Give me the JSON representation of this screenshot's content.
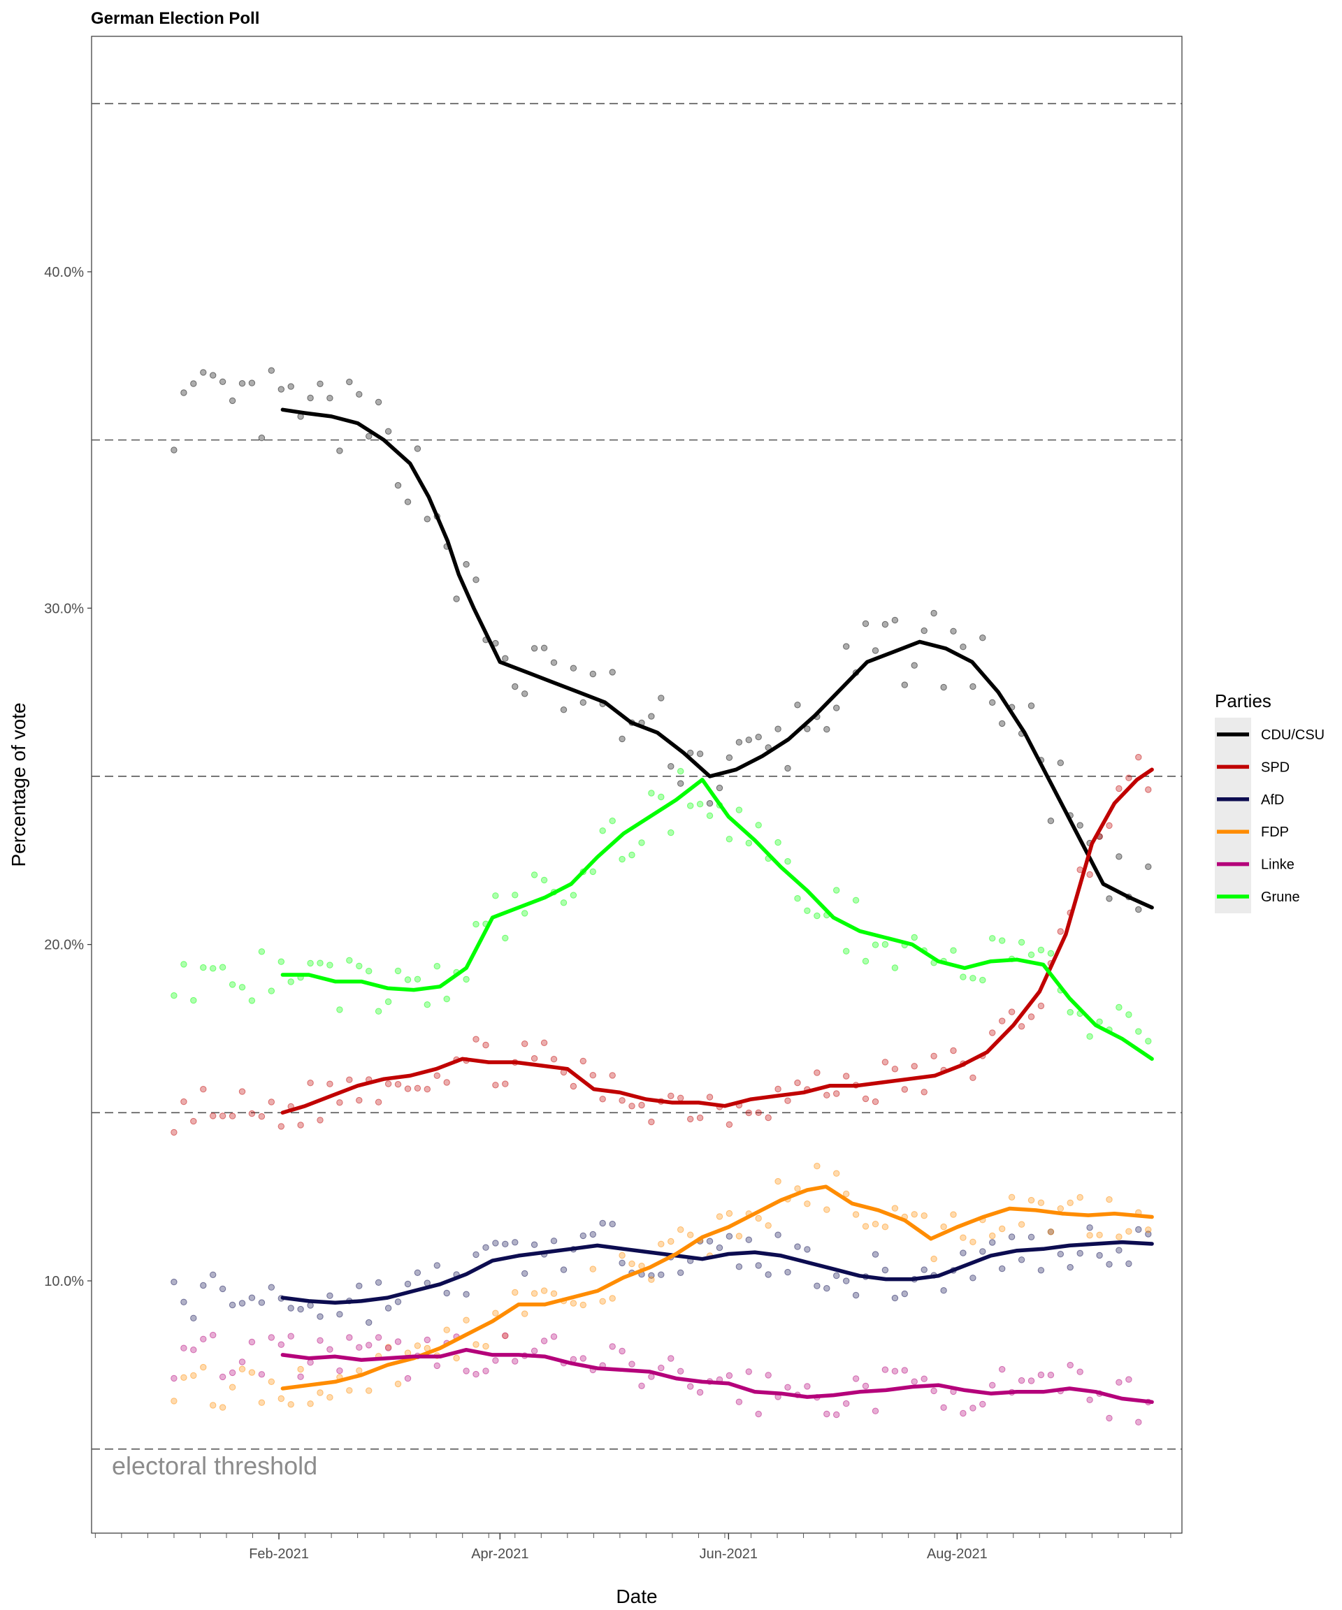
{
  "chart_data": {
    "type": "line",
    "title": "German Election Poll",
    "xlabel": "Date",
    "ylabel": "Percentage of vote",
    "x_tick_labels": [
      "Feb-2021",
      "Apr-2021",
      "Jun-2021",
      "Aug-2021"
    ],
    "y_tick_labels": [
      "10.0%",
      "20.0%",
      "30.0%",
      "40.0%"
    ],
    "y_ticks": [
      10,
      20,
      30,
      40
    ],
    "x_ticks": [
      "2021-02-01",
      "2021-04-01",
      "2021-06-01",
      "2021-08-01"
    ],
    "xlim": [
      "2020-12-13",
      "2021-09-30"
    ],
    "ylim": [
      2.5,
      47
    ],
    "reference_lines": [
      5,
      15,
      25,
      35,
      45
    ],
    "annotation": "electoral threshold",
    "legend_title": "Parties",
    "legend_position": "right",
    "grid": false,
    "series": [
      {
        "name": "CDU/CSU",
        "color": "#000000",
        "points": [
          [
            "2021-02-02",
            35.9
          ],
          [
            "2021-02-08",
            35.8
          ],
          [
            "2021-02-15",
            35.7
          ],
          [
            "2021-02-22",
            35.5
          ],
          [
            "2021-03-01",
            35.0
          ],
          [
            "2021-03-08",
            34.3
          ],
          [
            "2021-03-13",
            33.3
          ],
          [
            "2021-03-18",
            32.0
          ],
          [
            "2021-03-21",
            31.0
          ],
          [
            "2021-03-25",
            30.0
          ],
          [
            "2021-04-01",
            28.4
          ],
          [
            "2021-04-08",
            28.1
          ],
          [
            "2021-04-15",
            27.8
          ],
          [
            "2021-04-22",
            27.5
          ],
          [
            "2021-04-29",
            27.2
          ],
          [
            "2021-05-06",
            26.6
          ],
          [
            "2021-05-13",
            26.3
          ],
          [
            "2021-05-20",
            25.7
          ],
          [
            "2021-05-27",
            25.0
          ],
          [
            "2021-06-03",
            25.2
          ],
          [
            "2021-06-10",
            25.6
          ],
          [
            "2021-06-17",
            26.1
          ],
          [
            "2021-06-24",
            26.8
          ],
          [
            "2021-07-01",
            27.6
          ],
          [
            "2021-07-08",
            28.4
          ],
          [
            "2021-07-15",
            28.7
          ],
          [
            "2021-07-22",
            29.0
          ],
          [
            "2021-07-29",
            28.8
          ],
          [
            "2021-08-05",
            28.4
          ],
          [
            "2021-08-12",
            27.5
          ],
          [
            "2021-08-19",
            26.3
          ],
          [
            "2021-08-26",
            24.8
          ],
          [
            "2021-09-02",
            23.3
          ],
          [
            "2021-09-09",
            21.8
          ],
          [
            "2021-09-16",
            21.4
          ],
          [
            "2021-09-22",
            21.1
          ]
        ]
      },
      {
        "name": "SPD",
        "color": "#c00000",
        "points": [
          [
            "2021-02-02",
            15.0
          ],
          [
            "2021-02-08",
            15.2
          ],
          [
            "2021-02-15",
            15.5
          ],
          [
            "2021-02-22",
            15.8
          ],
          [
            "2021-03-01",
            16.0
          ],
          [
            "2021-03-08",
            16.1
          ],
          [
            "2021-03-15",
            16.3
          ],
          [
            "2021-03-22",
            16.6
          ],
          [
            "2021-03-29",
            16.5
          ],
          [
            "2021-04-05",
            16.5
          ],
          [
            "2021-04-12",
            16.4
          ],
          [
            "2021-04-19",
            16.3
          ],
          [
            "2021-04-26",
            15.7
          ],
          [
            "2021-05-03",
            15.6
          ],
          [
            "2021-05-10",
            15.4
          ],
          [
            "2021-05-17",
            15.3
          ],
          [
            "2021-05-24",
            15.3
          ],
          [
            "2021-05-31",
            15.2
          ],
          [
            "2021-06-07",
            15.4
          ],
          [
            "2021-06-14",
            15.5
          ],
          [
            "2021-06-21",
            15.6
          ],
          [
            "2021-06-28",
            15.8
          ],
          [
            "2021-07-05",
            15.8
          ],
          [
            "2021-07-12",
            15.9
          ],
          [
            "2021-07-19",
            16.0
          ],
          [
            "2021-07-26",
            16.1
          ],
          [
            "2021-08-02",
            16.4
          ],
          [
            "2021-08-09",
            16.8
          ],
          [
            "2021-08-16",
            17.6
          ],
          [
            "2021-08-23",
            18.6
          ],
          [
            "2021-08-30",
            20.3
          ],
          [
            "2021-09-06",
            23.0
          ],
          [
            "2021-09-12",
            24.2
          ],
          [
            "2021-09-18",
            24.9
          ],
          [
            "2021-09-22",
            25.2
          ]
        ]
      },
      {
        "name": "AfD",
        "color": "#0c0c50",
        "points": [
          [
            "2021-02-02",
            9.5
          ],
          [
            "2021-02-09",
            9.4
          ],
          [
            "2021-02-16",
            9.35
          ],
          [
            "2021-02-23",
            9.4
          ],
          [
            "2021-03-02",
            9.5
          ],
          [
            "2021-03-09",
            9.7
          ],
          [
            "2021-03-16",
            9.9
          ],
          [
            "2021-03-23",
            10.2
          ],
          [
            "2021-03-30",
            10.6
          ],
          [
            "2021-04-06",
            10.75
          ],
          [
            "2021-04-13",
            10.85
          ],
          [
            "2021-04-20",
            10.95
          ],
          [
            "2021-04-27",
            11.05
          ],
          [
            "2021-05-04",
            10.95
          ],
          [
            "2021-05-11",
            10.85
          ],
          [
            "2021-05-18",
            10.75
          ],
          [
            "2021-05-25",
            10.65
          ],
          [
            "2021-06-01",
            10.8
          ],
          [
            "2021-06-08",
            10.85
          ],
          [
            "2021-06-15",
            10.75
          ],
          [
            "2021-06-22",
            10.55
          ],
          [
            "2021-06-29",
            10.35
          ],
          [
            "2021-07-06",
            10.15
          ],
          [
            "2021-07-13",
            10.05
          ],
          [
            "2021-07-20",
            10.05
          ],
          [
            "2021-07-27",
            10.15
          ],
          [
            "2021-08-03",
            10.45
          ],
          [
            "2021-08-10",
            10.75
          ],
          [
            "2021-08-17",
            10.9
          ],
          [
            "2021-08-24",
            10.95
          ],
          [
            "2021-08-31",
            11.05
          ],
          [
            "2021-09-07",
            11.1
          ],
          [
            "2021-09-14",
            11.15
          ],
          [
            "2021-09-22",
            11.1
          ]
        ]
      },
      {
        "name": "FDP",
        "color": "#ff8c00",
        "points": [
          [
            "2021-02-02",
            6.8
          ],
          [
            "2021-02-09",
            6.9
          ],
          [
            "2021-02-16",
            7.0
          ],
          [
            "2021-02-23",
            7.2
          ],
          [
            "2021-03-02",
            7.5
          ],
          [
            "2021-03-09",
            7.7
          ],
          [
            "2021-03-16",
            8.0
          ],
          [
            "2021-03-23",
            8.4
          ],
          [
            "2021-03-30",
            8.8
          ],
          [
            "2021-04-06",
            9.3
          ],
          [
            "2021-04-13",
            9.3
          ],
          [
            "2021-04-20",
            9.5
          ],
          [
            "2021-04-27",
            9.7
          ],
          [
            "2021-05-04",
            10.1
          ],
          [
            "2021-05-11",
            10.4
          ],
          [
            "2021-05-18",
            10.8
          ],
          [
            "2021-05-25",
            11.3
          ],
          [
            "2021-06-01",
            11.6
          ],
          [
            "2021-06-08",
            12.0
          ],
          [
            "2021-06-15",
            12.4
          ],
          [
            "2021-06-22",
            12.7
          ],
          [
            "2021-06-27",
            12.8
          ],
          [
            "2021-07-04",
            12.3
          ],
          [
            "2021-07-11",
            12.1
          ],
          [
            "2021-07-18",
            11.8
          ],
          [
            "2021-07-25",
            11.25
          ],
          [
            "2021-08-01",
            11.6
          ],
          [
            "2021-08-08",
            11.9
          ],
          [
            "2021-08-15",
            12.15
          ],
          [
            "2021-08-22",
            12.1
          ],
          [
            "2021-08-29",
            12.0
          ],
          [
            "2021-09-05",
            11.95
          ],
          [
            "2021-09-12",
            12.0
          ],
          [
            "2021-09-22",
            11.9
          ]
        ]
      },
      {
        "name": "Linke",
        "color": "#b4007a",
        "points": [
          [
            "2021-02-02",
            7.8
          ],
          [
            "2021-02-09",
            7.7
          ],
          [
            "2021-02-16",
            7.75
          ],
          [
            "2021-02-23",
            7.65
          ],
          [
            "2021-03-02",
            7.7
          ],
          [
            "2021-03-09",
            7.75
          ],
          [
            "2021-03-16",
            7.75
          ],
          [
            "2021-03-23",
            7.95
          ],
          [
            "2021-03-30",
            7.8
          ],
          [
            "2021-04-06",
            7.8
          ],
          [
            "2021-04-13",
            7.75
          ],
          [
            "2021-04-20",
            7.55
          ],
          [
            "2021-04-27",
            7.4
          ],
          [
            "2021-05-04",
            7.35
          ],
          [
            "2021-05-11",
            7.3
          ],
          [
            "2021-05-18",
            7.1
          ],
          [
            "2021-05-25",
            7.0
          ],
          [
            "2021-06-01",
            6.95
          ],
          [
            "2021-06-08",
            6.7
          ],
          [
            "2021-06-15",
            6.65
          ],
          [
            "2021-06-22",
            6.55
          ],
          [
            "2021-06-29",
            6.6
          ],
          [
            "2021-07-06",
            6.7
          ],
          [
            "2021-07-13",
            6.75
          ],
          [
            "2021-07-20",
            6.85
          ],
          [
            "2021-07-27",
            6.9
          ],
          [
            "2021-08-03",
            6.75
          ],
          [
            "2021-08-10",
            6.65
          ],
          [
            "2021-08-17",
            6.7
          ],
          [
            "2021-08-24",
            6.7
          ],
          [
            "2021-08-31",
            6.8
          ],
          [
            "2021-09-07",
            6.7
          ],
          [
            "2021-09-14",
            6.5
          ],
          [
            "2021-09-22",
            6.4
          ]
        ]
      },
      {
        "name": "Grune",
        "color": "#00ff00",
        "points": [
          [
            "2021-02-02",
            19.1
          ],
          [
            "2021-02-09",
            19.1
          ],
          [
            "2021-02-16",
            18.9
          ],
          [
            "2021-02-23",
            18.9
          ],
          [
            "2021-03-02",
            18.7
          ],
          [
            "2021-03-09",
            18.65
          ],
          [
            "2021-03-16",
            18.75
          ],
          [
            "2021-03-23",
            19.3
          ],
          [
            "2021-03-30",
            20.8
          ],
          [
            "2021-04-06",
            21.1
          ],
          [
            "2021-04-13",
            21.4
          ],
          [
            "2021-04-20",
            21.8
          ],
          [
            "2021-04-27",
            22.6
          ],
          [
            "2021-05-04",
            23.3
          ],
          [
            "2021-05-11",
            23.8
          ],
          [
            "2021-05-18",
            24.3
          ],
          [
            "2021-05-25",
            24.9
          ],
          [
            "2021-06-01",
            23.8
          ],
          [
            "2021-06-08",
            23.1
          ],
          [
            "2021-06-15",
            22.3
          ],
          [
            "2021-06-22",
            21.6
          ],
          [
            "2021-06-29",
            20.8
          ],
          [
            "2021-07-06",
            20.4
          ],
          [
            "2021-07-13",
            20.2
          ],
          [
            "2021-07-20",
            20.0
          ],
          [
            "2021-07-27",
            19.5
          ],
          [
            "2021-08-03",
            19.3
          ],
          [
            "2021-08-10",
            19.5
          ],
          [
            "2021-08-17",
            19.55
          ],
          [
            "2021-08-24",
            19.4
          ],
          [
            "2021-08-31",
            18.4
          ],
          [
            "2021-09-07",
            17.6
          ],
          [
            "2021-09-14",
            17.2
          ],
          [
            "2021-09-22",
            16.6
          ]
        ]
      }
    ]
  }
}
